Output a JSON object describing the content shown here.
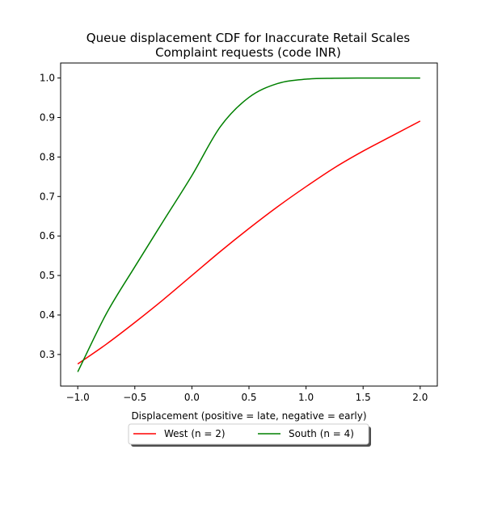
{
  "chart_data": {
    "type": "line",
    "title_lines": [
      "Queue displacement CDF for Inaccurate Retail Scales",
      "Complaint  requests (code INR)"
    ],
    "xlabel": "Displacement (positive = late, negative = early)",
    "ylabel": "",
    "xlim": [
      -1.15,
      2.15
    ],
    "ylim": [
      0.22,
      1.038
    ],
    "grid": false,
    "legend_placement": "below-center",
    "xticks": [
      -1.0,
      -0.5,
      0.0,
      0.5,
      1.0,
      1.5,
      2.0
    ],
    "xtick_labels": [
      "−1.0",
      "−0.5",
      "0.0",
      "0.5",
      "1.0",
      "1.5",
      "2.0"
    ],
    "yticks": [
      0.3,
      0.4,
      0.5,
      0.6,
      0.7,
      0.8,
      0.9,
      1.0
    ],
    "ytick_labels": [
      "0.3",
      "0.4",
      "0.5",
      "0.6",
      "0.7",
      "0.8",
      "0.9",
      "1.0"
    ],
    "x": [
      -1.0,
      -0.75,
      -0.5,
      -0.25,
      0.0,
      0.25,
      0.5,
      0.75,
      1.0,
      1.25,
      1.5,
      1.75,
      2.0
    ],
    "series": [
      {
        "name": "West (n = 2)",
        "color": "#ff0000",
        "values": [
          0.276,
          0.326,
          0.381,
          0.439,
          0.5,
          0.561,
          0.619,
          0.674,
          0.725,
          0.773,
          0.815,
          0.853,
          0.891
        ]
      },
      {
        "name": "South (n = 4)",
        "color": "#008000",
        "values": [
          0.256,
          0.403,
          0.522,
          0.638,
          0.753,
          0.877,
          0.951,
          0.986,
          0.997,
          0.9993,
          0.9999,
          1.0,
          1.0
        ]
      }
    ]
  }
}
